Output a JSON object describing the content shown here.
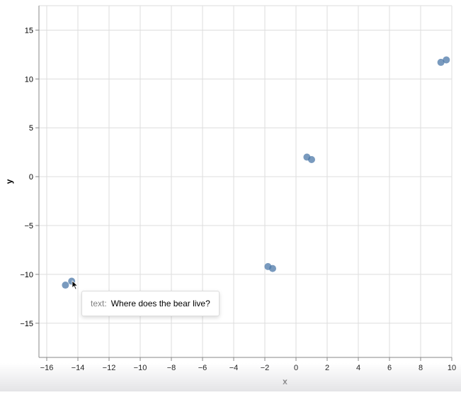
{
  "chart_data": {
    "type": "scatter",
    "xlabel": "x",
    "ylabel": "y",
    "xlim": [
      -16.5,
      10
    ],
    "ylim": [
      -18.5,
      17.5
    ],
    "x_ticks": [
      -16,
      -14,
      -12,
      -10,
      -8,
      -6,
      -4,
      -2,
      0,
      2,
      4,
      6,
      8,
      10
    ],
    "y_ticks": [
      -15,
      -10,
      -5,
      0,
      5,
      10,
      15
    ],
    "grid": true,
    "point_color": "#4c78a8",
    "points": [
      {
        "x": -14.8,
        "y": -11.1
      },
      {
        "x": -14.4,
        "y": -10.7
      },
      {
        "x": -1.8,
        "y": -9.2
      },
      {
        "x": -1.5,
        "y": -9.4
      },
      {
        "x": 0.7,
        "y": 2.0
      },
      {
        "x": 1.0,
        "y": 1.75
      },
      {
        "x": 9.3,
        "y": 11.7
      },
      {
        "x": 9.65,
        "y": 11.95
      }
    ]
  },
  "tooltip": {
    "key": "text:",
    "value": "Where does the bear live?"
  }
}
